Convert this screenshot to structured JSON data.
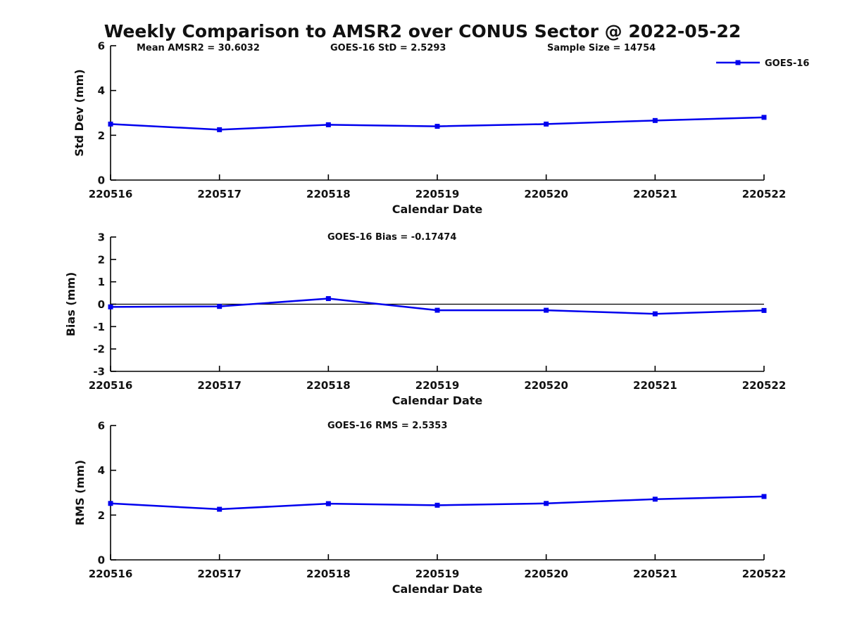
{
  "main_title": "Weekly Comparison to AMSR2 over CONUS Sector @ 2022-05-22",
  "colors": {
    "line": "#0000EE",
    "axis": "#000000",
    "text": "#111111",
    "zero_line": "#000000"
  },
  "chart_data": [
    {
      "id": "std-dev",
      "type": "line",
      "title": "",
      "annotations": [
        "Mean AMSR2 = 30.6032",
        "GOES-16 StD = 2.5293",
        "Sample Size = 14754"
      ],
      "categories": [
        "220516",
        "220517",
        "220518",
        "220519",
        "220520",
        "220521",
        "220522"
      ],
      "series": [
        {
          "name": "GOES-16",
          "values": [
            2.5,
            2.25,
            2.47,
            2.4,
            2.5,
            2.66,
            2.8
          ]
        }
      ],
      "xlabel": "Calendar Date",
      "ylabel": "Std Dev (mm)",
      "ylim": [
        0,
        6
      ],
      "yticks": [
        0,
        2,
        4,
        6
      ],
      "zero_line": false,
      "legend": {
        "label": "GOES-16",
        "position": "top-right"
      }
    },
    {
      "id": "bias",
      "type": "line",
      "title": "GOES-16 Bias  = -0.17474",
      "annotations": [],
      "categories": [
        "220516",
        "220517",
        "220518",
        "220519",
        "220520",
        "220521",
        "220522"
      ],
      "series": [
        {
          "name": "GOES-16",
          "values": [
            -0.12,
            -0.1,
            0.25,
            -0.27,
            -0.27,
            -0.43,
            -0.28
          ]
        }
      ],
      "xlabel": "Calendar Date",
      "ylabel": "Bias (mm)",
      "ylim": [
        -3,
        3
      ],
      "yticks": [
        -3,
        -2,
        -1,
        0,
        1,
        2,
        3
      ],
      "zero_line": true,
      "legend": null
    },
    {
      "id": "rms",
      "type": "line",
      "title": "GOES-16 RMS = 2.5353",
      "annotations": [],
      "categories": [
        "220516",
        "220517",
        "220518",
        "220519",
        "220520",
        "220521",
        "220522"
      ],
      "series": [
        {
          "name": "GOES-16",
          "values": [
            2.52,
            2.26,
            2.51,
            2.44,
            2.52,
            2.71,
            2.83
          ]
        }
      ],
      "xlabel": "Calendar Date",
      "ylabel": "RMS (mm)",
      "ylim": [
        0,
        6
      ],
      "yticks": [
        0,
        2,
        4,
        6
      ],
      "zero_line": false,
      "legend": null
    }
  ]
}
